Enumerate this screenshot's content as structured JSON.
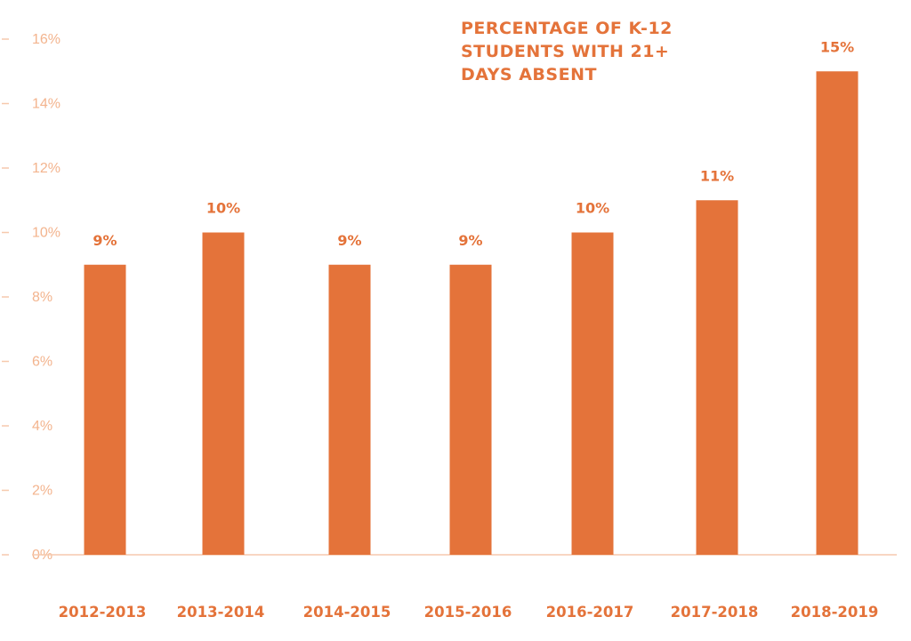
{
  "chart_data": {
    "type": "bar",
    "title_lines": [
      "PERCENTAGE OF K-12",
      "STUDENTS WITH 21+",
      "DAYS ABSENT"
    ],
    "categories": [
      "2012-2013",
      "2013-2014",
      "2014-2015",
      "2015-2016",
      "2016-2017",
      "2017-2018",
      "2018-2019"
    ],
    "values": [
      9,
      10,
      9,
      9,
      10,
      11,
      15
    ],
    "data_labels": [
      "9%",
      "10%",
      "9%",
      "9%",
      "10%",
      "11%",
      "15%"
    ],
    "y_ticks": [
      0,
      2,
      4,
      6,
      8,
      10,
      12,
      14,
      16
    ],
    "y_tick_labels": [
      "0%",
      "2%",
      "4%",
      "6%",
      "8%",
      "10%",
      "12%",
      "14%",
      "16%"
    ],
    "ylim": [
      0,
      16
    ],
    "grid": false,
    "legend": "none",
    "xlabel": "",
    "ylabel": "",
    "colors": {
      "bar": "#e4733a",
      "text": "#e4733a",
      "tick": "#f3b48e",
      "axis": "#f6c9ad"
    }
  }
}
